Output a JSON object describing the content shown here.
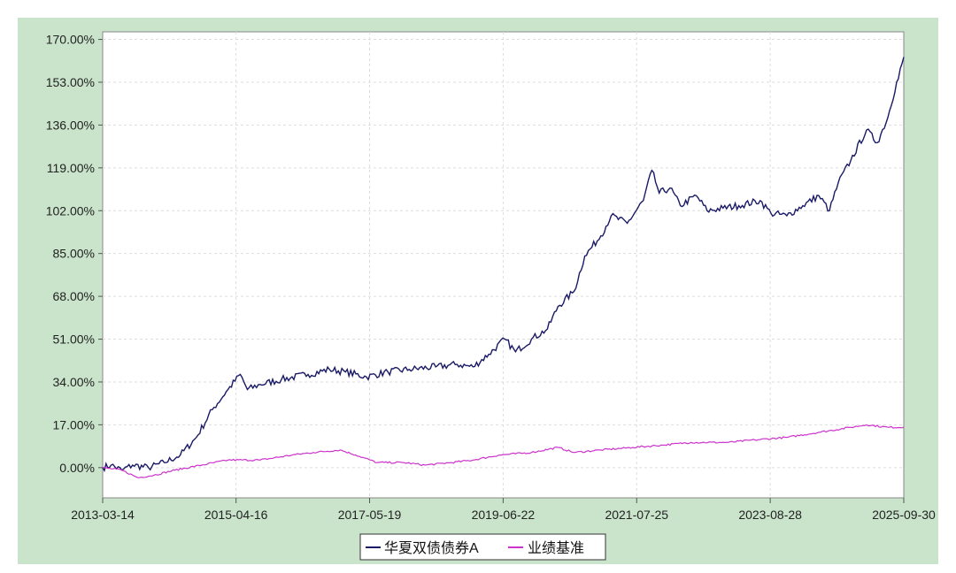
{
  "chart_data": {
    "type": "line",
    "x_tick_labels": [
      "2013-03-14",
      "2015-04-16",
      "2017-05-19",
      "2019-06-22",
      "2021-07-25",
      "2023-08-28",
      "2025-09-30"
    ],
    "y_tick_labels": [
      "170.00%",
      "153.00%",
      "136.00%",
      "119.00%",
      "102.00%",
      "85.00%",
      "68.00%",
      "51.00%",
      "34.00%",
      "17.00%",
      "0.00%"
    ],
    "ylim": [
      -12,
      173
    ],
    "xlim": [
      "2013-03-14",
      "2025-09-30"
    ],
    "grid": true,
    "legend_placement": "bottom-center",
    "series": [
      {
        "name": "华夏双债债券A",
        "color": "#1a1a66",
        "points": [
          [
            "2013-03-14",
            0
          ],
          [
            "2013-05-01",
            1
          ],
          [
            "2013-07-01",
            -1
          ],
          [
            "2013-09-01",
            1
          ],
          [
            "2013-12-01",
            0
          ],
          [
            "2014-03-01",
            2
          ],
          [
            "2014-06-01",
            5
          ],
          [
            "2014-09-01",
            12
          ],
          [
            "2014-12-01",
            23
          ],
          [
            "2015-03-01",
            31
          ],
          [
            "2015-05-10",
            37
          ],
          [
            "2015-06-20",
            31
          ],
          [
            "2015-09-01",
            33
          ],
          [
            "2016-01-01",
            35
          ],
          [
            "2016-06-01",
            37
          ],
          [
            "2016-10-01",
            39
          ],
          [
            "2017-01-01",
            38
          ],
          [
            "2017-05-01",
            36
          ],
          [
            "2017-09-01",
            38
          ],
          [
            "2018-01-01",
            39
          ],
          [
            "2018-06-01",
            40
          ],
          [
            "2018-10-01",
            41
          ],
          [
            "2019-01-01",
            40
          ],
          [
            "2019-04-01",
            45
          ],
          [
            "2019-07-01",
            51
          ],
          [
            "2019-09-01",
            46
          ],
          [
            "2019-12-01",
            51
          ],
          [
            "2020-03-01",
            55
          ],
          [
            "2020-05-01",
            64
          ],
          [
            "2020-08-01",
            70
          ],
          [
            "2020-10-01",
            84
          ],
          [
            "2021-01-01",
            92
          ],
          [
            "2021-03-01",
            100
          ],
          [
            "2021-06-01",
            97
          ],
          [
            "2021-09-01",
            106
          ],
          [
            "2021-10-20",
            118
          ],
          [
            "2021-12-01",
            109
          ],
          [
            "2022-02-01",
            111
          ],
          [
            "2022-04-01",
            104
          ],
          [
            "2022-07-01",
            108
          ],
          [
            "2022-09-01",
            102
          ],
          [
            "2022-12-01",
            103
          ],
          [
            "2023-03-01",
            104
          ],
          [
            "2023-07-01",
            106
          ],
          [
            "2023-09-01",
            101
          ],
          [
            "2023-12-01",
            100
          ],
          [
            "2024-03-01",
            104
          ],
          [
            "2024-06-01",
            108
          ],
          [
            "2024-08-01",
            102
          ],
          [
            "2024-09-20",
            113
          ],
          [
            "2024-12-01",
            122
          ],
          [
            "2025-03-01",
            134
          ],
          [
            "2025-05-01",
            129
          ],
          [
            "2025-07-01",
            139
          ],
          [
            "2025-08-20",
            153
          ],
          [
            "2025-09-30",
            163
          ]
        ]
      },
      {
        "name": "业绩基准",
        "color": "#cc33cc",
        "points": [
          [
            "2013-03-14",
            0
          ],
          [
            "2013-07-01",
            -1
          ],
          [
            "2013-10-01",
            -4
          ],
          [
            "2014-01-01",
            -3
          ],
          [
            "2014-05-01",
            -1
          ],
          [
            "2014-10-01",
            1
          ],
          [
            "2015-03-01",
            3
          ],
          [
            "2015-09-01",
            3
          ],
          [
            "2016-03-01",
            5
          ],
          [
            "2016-07-01",
            6
          ],
          [
            "2016-12-01",
            7
          ],
          [
            "2017-03-01",
            5
          ],
          [
            "2017-07-01",
            2
          ],
          [
            "2017-12-01",
            2
          ],
          [
            "2018-04-01",
            1
          ],
          [
            "2018-09-01",
            2
          ],
          [
            "2019-01-01",
            3
          ],
          [
            "2019-06-01",
            5
          ],
          [
            "2019-12-01",
            6
          ],
          [
            "2020-05-01",
            8
          ],
          [
            "2020-08-01",
            6
          ],
          [
            "2021-01-01",
            7
          ],
          [
            "2021-07-01",
            8
          ],
          [
            "2022-01-01",
            9
          ],
          [
            "2022-06-01",
            10
          ],
          [
            "2023-01-01",
            10
          ],
          [
            "2023-06-01",
            11
          ],
          [
            "2023-12-01",
            12
          ],
          [
            "2024-06-01",
            14
          ],
          [
            "2024-12-01",
            16
          ],
          [
            "2025-03-01",
            17
          ],
          [
            "2025-07-01",
            16
          ],
          [
            "2025-09-30",
            16
          ]
        ]
      }
    ]
  }
}
